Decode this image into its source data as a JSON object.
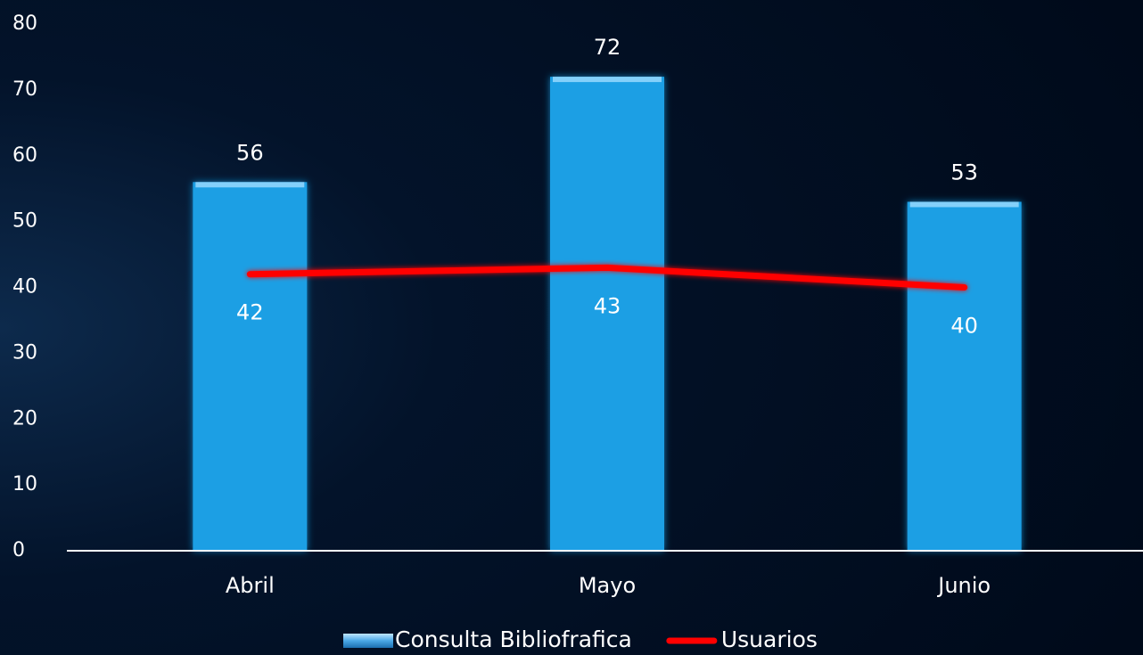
{
  "chart_data": {
    "type": "bar",
    "categories": [
      "Abril",
      "Mayo",
      "Junio"
    ],
    "series": [
      {
        "name": "Consulta Bibliofrafica",
        "type": "bar",
        "color": "#1a9fe4",
        "values": [
          56,
          72,
          53
        ]
      },
      {
        "name": "Usuarios",
        "type": "line",
        "color": "#ff0000",
        "values": [
          42,
          43,
          40
        ]
      }
    ],
    "ylim": [
      0,
      80
    ],
    "yticks": [
      0,
      10,
      20,
      30,
      40,
      50,
      60,
      70,
      80
    ],
    "grid": false,
    "legend": "bottom"
  }
}
